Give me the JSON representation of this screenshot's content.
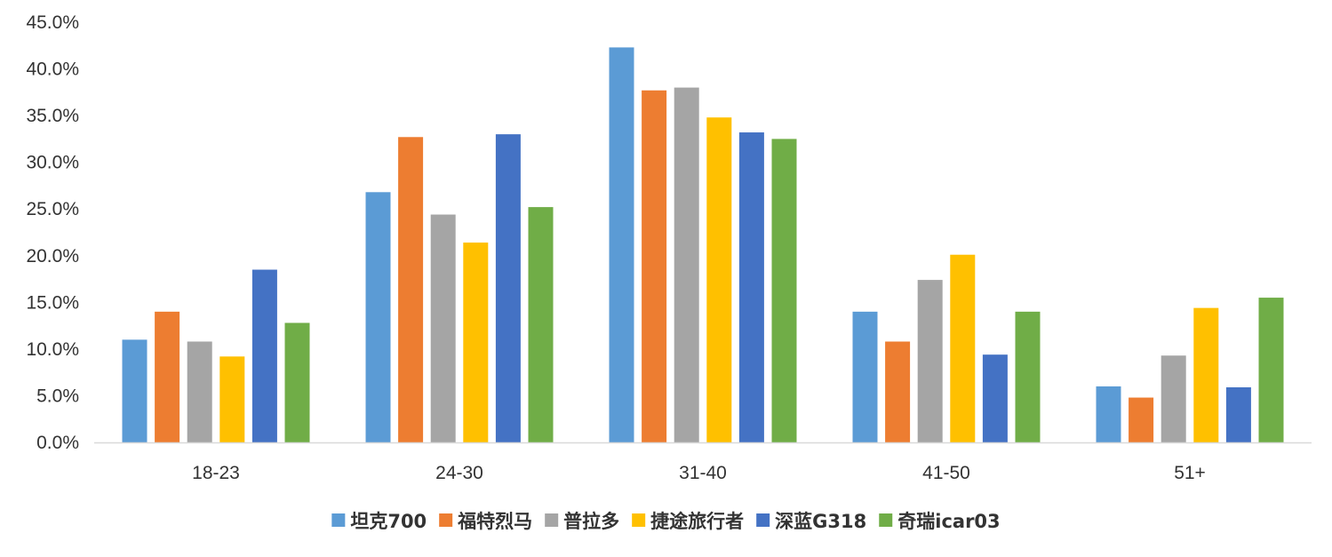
{
  "chart_data": {
    "type": "bar",
    "title": "",
    "xlabel": "",
    "ylabel": "",
    "ylim": [
      0,
      0.45
    ],
    "y_tick_format": "percent_1dp",
    "y_ticks": [
      "0.0%",
      "5.0%",
      "10.0%",
      "15.0%",
      "20.0%",
      "25.0%",
      "30.0%",
      "35.0%",
      "40.0%",
      "45.0%"
    ],
    "grid": false,
    "legend_position": "bottom",
    "categories": [
      "18-23",
      "24-30",
      "31-40",
      "41-50",
      "51+"
    ],
    "series": [
      {
        "name": "坦克700",
        "color": "#5B9BD5",
        "values": [
          0.11,
          0.268,
          0.423,
          0.14,
          0.06
        ]
      },
      {
        "name": "福特烈马",
        "color": "#ED7D31",
        "values": [
          0.14,
          0.327,
          0.377,
          0.108,
          0.048
        ]
      },
      {
        "name": "普拉多",
        "color": "#A5A5A5",
        "values": [
          0.108,
          0.244,
          0.38,
          0.174,
          0.093
        ]
      },
      {
        "name": "捷途旅行者",
        "color": "#FFC000",
        "values": [
          0.092,
          0.214,
          0.348,
          0.201,
          0.144
        ]
      },
      {
        "name": "深蓝G318",
        "color": "#4472C4",
        "values": [
          0.185,
          0.33,
          0.332,
          0.094,
          0.059
        ]
      },
      {
        "name": "奇瑞icar03",
        "color": "#70AD47",
        "values": [
          0.128,
          0.252,
          0.325,
          0.14,
          0.155
        ]
      }
    ]
  }
}
